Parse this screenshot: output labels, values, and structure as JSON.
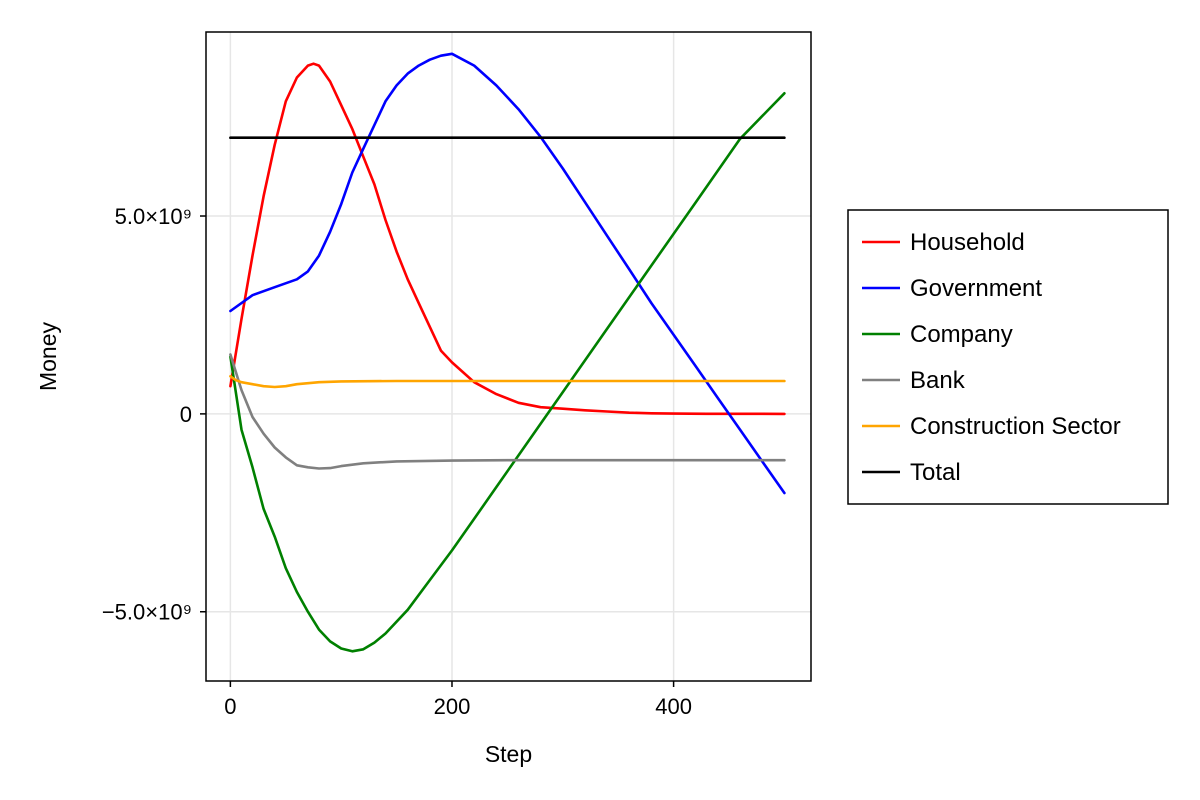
{
  "chart_data": {
    "type": "line",
    "title": "",
    "xlabel": "Step",
    "ylabel": "Money",
    "xlim": [
      -22,
      524
    ],
    "ylim": [
      -6750000000.0,
      9650000000.0
    ],
    "grid": true,
    "legend_position": "right",
    "x_ticks": [
      {
        "value": 0,
        "label": "0"
      },
      {
        "value": 200,
        "label": "200"
      },
      {
        "value": 400,
        "label": "400"
      }
    ],
    "y_ticks": [
      {
        "value": 5000000000,
        "label": "5.0×10⁹"
      },
      {
        "value": 0,
        "label": "0"
      },
      {
        "value": -5000000000,
        "label": "−5.0×10⁹"
      }
    ],
    "series": [
      {
        "name": "Household",
        "color": "#ff0000",
        "x": [
          0,
          10,
          20,
          30,
          40,
          50,
          60,
          70,
          75,
          80,
          90,
          100,
          110,
          120,
          130,
          140,
          150,
          160,
          170,
          180,
          190,
          200,
          220,
          240,
          260,
          280,
          300,
          320,
          340,
          360,
          380,
          400,
          430,
          460,
          500
        ],
        "y": [
          700000000.0,
          2400000000.0,
          4000000000.0,
          5500000000.0,
          6800000000.0,
          7900000000.0,
          8500000000.0,
          8800000000.0,
          8850000000.0,
          8800000000.0,
          8400000000.0,
          7800000000.0,
          7200000000.0,
          6500000000.0,
          5800000000.0,
          4900000000.0,
          4100000000.0,
          3400000000.0,
          2800000000.0,
          2200000000.0,
          1600000000.0,
          1300000000.0,
          800000000.0,
          500000000.0,
          280000000.0,
          170000000.0,
          130000000.0,
          90000000.0,
          60000000.0,
          30000000.0,
          15000000.0,
          8000000.0,
          3000000.0,
          1000000.0,
          0
        ]
      },
      {
        "name": "Government",
        "color": "#0000ff",
        "x": [
          0,
          20,
          40,
          60,
          70,
          80,
          90,
          100,
          110,
          120,
          130,
          140,
          150,
          160,
          170,
          180,
          190,
          200,
          220,
          240,
          260,
          280,
          300,
          320,
          340,
          360,
          380,
          400,
          420,
          440,
          460,
          480,
          500
        ],
        "y": [
          2600000000.0,
          3000000000.0,
          3200000000.0,
          3400000000.0,
          3600000000.0,
          4000000000.0,
          4600000000.0,
          5300000000.0,
          6100000000.0,
          6700000000.0,
          7300000000.0,
          7900000000.0,
          8300000000.0,
          8600000000.0,
          8800000000.0,
          8950000000.0,
          9050000000.0,
          9100000000.0,
          8800000000.0,
          8300000000.0,
          7700000000.0,
          7000000000.0,
          6200000000.0,
          5350000000.0,
          4500000000.0,
          3650000000.0,
          2800000000.0,
          2000000000.0,
          1200000000.0,
          400000000.0,
          -400000000.0,
          -1200000000.0,
          -2000000000.0
        ]
      },
      {
        "name": "Company",
        "color": "#008000",
        "x": [
          0,
          10,
          20,
          30,
          40,
          50,
          60,
          70,
          80,
          90,
          100,
          110,
          120,
          130,
          140,
          160,
          180,
          200,
          220,
          240,
          260,
          280,
          300,
          340,
          380,
          420,
          460,
          500
        ],
        "y": [
          1450000000.0,
          -400000000.0,
          -1350000000.0,
          -2400000000.0,
          -3100000000.0,
          -3900000000.0,
          -4500000000.0,
          -5000000000.0,
          -5450000000.0,
          -5750000000.0,
          -5930000000.0,
          -6000000000.0,
          -5950000000.0,
          -5780000000.0,
          -5550000000.0,
          -4950000000.0,
          -4200000000.0,
          -3450000000.0,
          -2650000000.0,
          -1850000000.0,
          -1050000000.0,
          -250000000.0,
          550000000.0,
          2150000000.0,
          3750000000.0,
          5350000000.0,
          6950000000.0,
          8100000000.0
        ]
      },
      {
        "name": "Bank",
        "color": "#808080",
        "x": [
          0,
          10,
          20,
          30,
          40,
          50,
          60,
          70,
          80,
          90,
          100,
          120,
          150,
          200,
          250,
          300,
          400,
          500
        ],
        "y": [
          1500000000.0,
          600000000.0,
          -80000000.0,
          -500000000.0,
          -850000000.0,
          -1100000000.0,
          -1300000000.0,
          -1350000000.0,
          -1380000000.0,
          -1370000000.0,
          -1320000000.0,
          -1250000000.0,
          -1200000000.0,
          -1180000000.0,
          -1170000000.0,
          -1170000000.0,
          -1170000000.0,
          -1170000000.0
        ]
      },
      {
        "name": "Construction Sector",
        "color": "#ffa500",
        "x": [
          0,
          5,
          10,
          20,
          30,
          40,
          50,
          60,
          80,
          100,
          150,
          200,
          300,
          400,
          500
        ],
        "y": [
          950000000.0,
          850000000.0,
          800000000.0,
          750000000.0,
          700000000.0,
          680000000.0,
          700000000.0,
          750000000.0,
          800000000.0,
          820000000.0,
          830000000.0,
          830000000.0,
          830000000.0,
          830000000.0,
          830000000.0
        ]
      },
      {
        "name": "Total",
        "color": "#000000",
        "x": [
          0,
          500
        ],
        "y": [
          6980000000.0,
          6980000000.0
        ]
      }
    ]
  }
}
